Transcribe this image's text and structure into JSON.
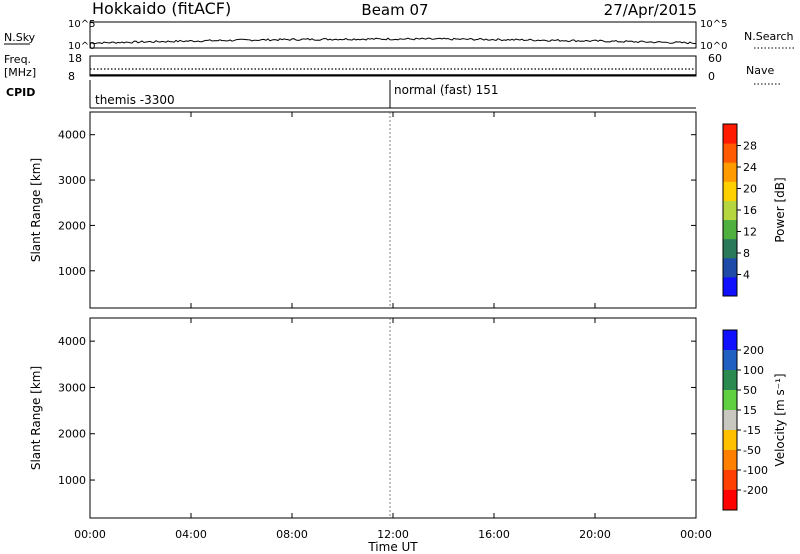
{
  "header": {
    "station": "Hokkaido (fitACF)",
    "beam": "Beam 07",
    "date": "27/Apr/2015"
  },
  "strip": {
    "nsky_label": "N.Sky",
    "nsearch_label": "N.Search",
    "nsky_ticks": [
      "10^5",
      "10^0"
    ],
    "nsearch_ticks": [
      "10^5",
      "10^0"
    ],
    "freq_label_1": "Freq.",
    "freq_label_2": "[MHz]",
    "freq_ticks": [
      "18",
      "8"
    ],
    "nave_label": "Nave",
    "nave_ticks": [
      "60",
      "0"
    ],
    "cpid_label": "CPID",
    "cpid_modes": [
      "themis -3300",
      "normal (fast) 151"
    ]
  },
  "chart_data": [
    {
      "type": "heatmap",
      "name": "power",
      "ylabel": "Slant Range [km]",
      "ylim": [
        180,
        4500
      ],
      "yticks": [
        "1000",
        "2000",
        "3000",
        "4000"
      ],
      "xlabel": "Time UT",
      "xticks": [
        "00:00",
        "04:00",
        "08:00",
        "12:00",
        "16:00",
        "20:00",
        "00:00"
      ],
      "colorbar": {
        "label": "Power [dB]",
        "ticks": [
          "4",
          "8",
          "12",
          "16",
          "20",
          "24",
          "28"
        ],
        "colors": [
          "#1010ff",
          "#1e4aa8",
          "#2a7a5a",
          "#4fb040",
          "#b6d640",
          "#ffd000",
          "#ff9a00",
          "#ff5a00",
          "#ff1a00"
        ]
      }
    },
    {
      "type": "heatmap",
      "name": "velocity",
      "ylabel": "Slant Range [km]",
      "ylim": [
        180,
        4500
      ],
      "yticks": [
        "1000",
        "2000",
        "3000",
        "4000"
      ],
      "xlabel": "Time UT",
      "xticks": [
        "00:00",
        "04:00",
        "08:00",
        "12:00",
        "16:00",
        "20:00",
        "00:00"
      ],
      "colorbar": {
        "label": "Velocity [m s⁻¹]",
        "ticks": [
          "200",
          "100",
          "50",
          "15",
          "-15",
          "-50",
          "-100",
          "-200"
        ],
        "colors": [
          "#1010ff",
          "#2060c0",
          "#2a8a50",
          "#60d040",
          "#c8c8c0",
          "#ffc000",
          "#ff8000",
          "#ff4000",
          "#ff0000"
        ]
      }
    }
  ]
}
